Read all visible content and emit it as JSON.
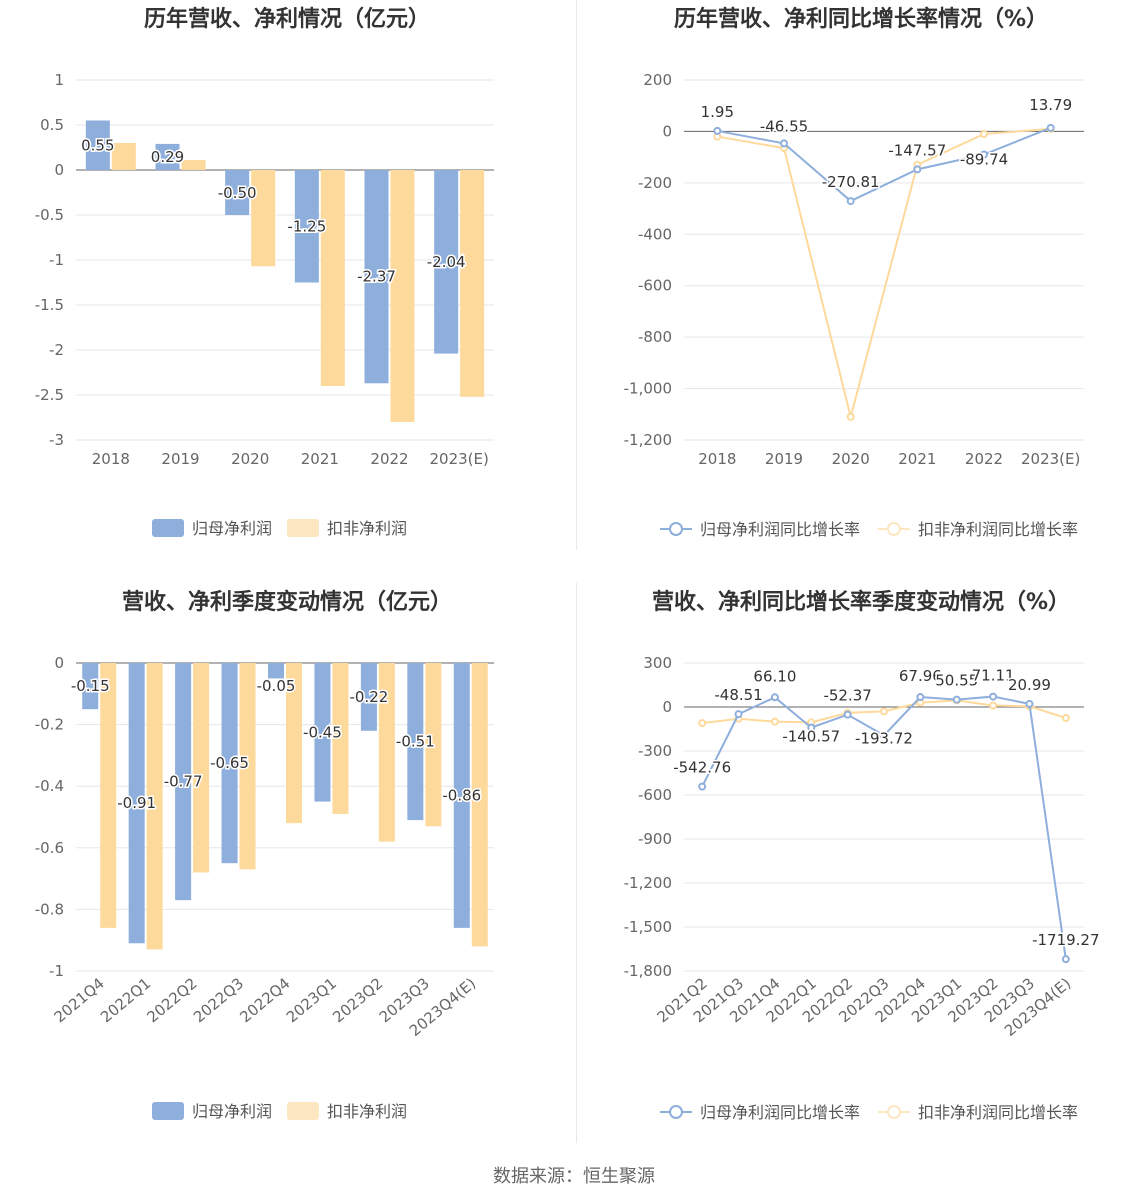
{
  "footer": "数据来源：恒生聚源",
  "colors": {
    "blue": "#8eaedb",
    "orange": "#fdd99b",
    "orange_light": "#fde7c0",
    "grid": "#e6e6ee",
    "axis": "#666666"
  },
  "chart_data": [
    {
      "type": "bar",
      "title": "历年营收、净利情况（亿元）",
      "categories": [
        "2018",
        "2019",
        "2020",
        "2021",
        "2022",
        "2023(E)"
      ],
      "yticks": [
        "1",
        "0.5",
        "0",
        "-0.5",
        "-1",
        "-1.5",
        "-2",
        "-2.5",
        "-3"
      ],
      "ylim": [
        -3,
        1
      ],
      "series": [
        {
          "name": "归母净利润",
          "values": [
            0.55,
            0.29,
            -0.5,
            -1.25,
            -2.37,
            -2.04
          ],
          "labels": [
            "0.55",
            "0.29",
            "-0.50",
            "-1.25",
            "-2.37",
            "-2.04"
          ]
        },
        {
          "name": "扣非净利润",
          "values": [
            0.3,
            0.11,
            -1.07,
            -2.4,
            -2.8,
            -2.52
          ]
        }
      ]
    },
    {
      "type": "line",
      "title": "历年营收、净利同比增长率情况（%）",
      "categories": [
        "2018",
        "2019",
        "2020",
        "2021",
        "2022",
        "2023(E)"
      ],
      "yticks": [
        "200",
        "0",
        "-200",
        "-400",
        "-600",
        "-800",
        "-1,000",
        "-1,200"
      ],
      "ylim": [
        -1200,
        200
      ],
      "series": [
        {
          "name": "归母净利润同比增长率",
          "values": [
            1.95,
            -46.55,
            -270.81,
            -147.57,
            -89.74,
            13.79
          ],
          "labels": [
            "1.95",
            "-46.55",
            "-270.81",
            "-147.57",
            "-89.74",
            "13.79"
          ]
        },
        {
          "name": "扣非净利润同比增长率",
          "values": [
            -20,
            -65,
            -1110,
            -130,
            -10,
            10
          ]
        }
      ]
    },
    {
      "type": "bar",
      "title": "营收、净利季度变动情况（亿元）",
      "categories": [
        "2021Q4",
        "2022Q1",
        "2022Q2",
        "2022Q3",
        "2022Q4",
        "2023Q1",
        "2023Q2",
        "2023Q3",
        "2023Q4(E)"
      ],
      "yticks": [
        "0",
        "-0.2",
        "-0.4",
        "-0.6",
        "-0.8",
        "-1"
      ],
      "ylim": [
        -1,
        0
      ],
      "series": [
        {
          "name": "归母净利润",
          "values": [
            -0.15,
            -0.91,
            -0.77,
            -0.65,
            -0.05,
            -0.45,
            -0.22,
            -0.51,
            -0.86
          ],
          "labels": [
            "-0.15",
            "-0.91",
            "-0.77",
            "-0.65",
            "-0.05",
            "-0.45",
            "-0.22",
            "-0.51",
            "-0.86"
          ]
        },
        {
          "name": "扣非净利润",
          "values": [
            -0.86,
            -0.93,
            -0.68,
            -0.67,
            -0.52,
            -0.49,
            -0.58,
            -0.53,
            -0.92
          ]
        }
      ]
    },
    {
      "type": "line",
      "title": "营收、净利同比增长率季度变动情况（%）",
      "categories": [
        "2021Q2",
        "2021Q3",
        "2021Q4",
        "2022Q1",
        "2022Q2",
        "2022Q3",
        "2022Q4",
        "2023Q1",
        "2023Q2",
        "2023Q3",
        "2023Q4(E)"
      ],
      "yticks": [
        "300",
        "0",
        "-300",
        "-600",
        "-900",
        "-1,200",
        "-1,500",
        "-1,800"
      ],
      "ylim": [
        -1800,
        300
      ],
      "series": [
        {
          "name": "归母净利润同比增长率",
          "values": [
            -542.76,
            -48.51,
            66.1,
            -140.57,
            -52.37,
            -193.72,
            67.96,
            50.55,
            71.11,
            20.99,
            -1719.27
          ],
          "labels": [
            "-542.76",
            "-48.51",
            "66.10",
            "-140.57",
            "-52.37",
            "-193.72",
            "67.96",
            "50.55",
            "71.11",
            "20.99",
            "-1719.27"
          ]
        },
        {
          "name": "扣非净利润同比增长率",
          "values": [
            -110,
            -80,
            -100,
            -105,
            -40,
            -30,
            30,
            45,
            10,
            5,
            -75
          ]
        }
      ]
    }
  ]
}
